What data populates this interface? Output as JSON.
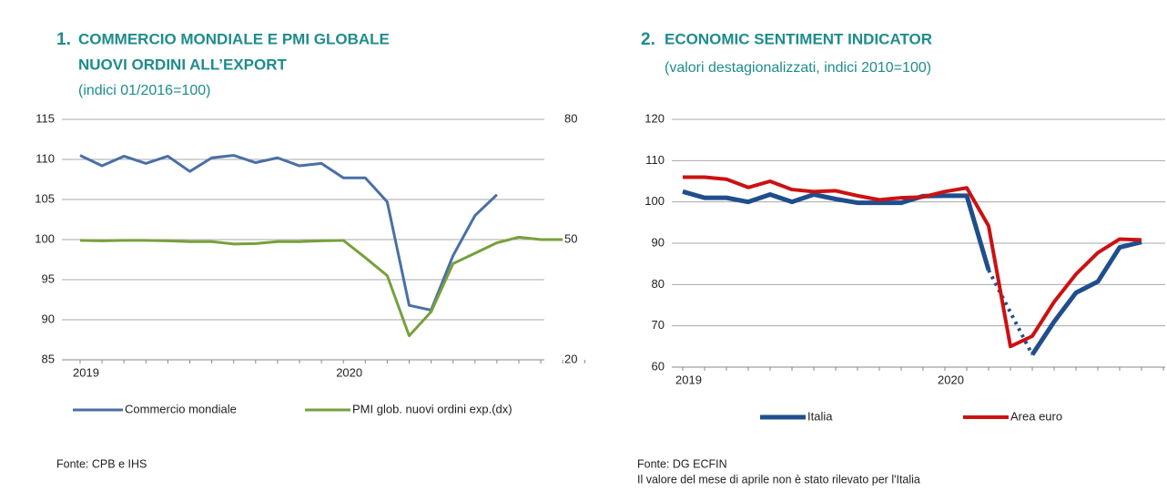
{
  "chart_data": [
    {
      "type": "line",
      "number": "1.",
      "title": "COMMERCIO MONDIALE E PMI GLOBALE",
      "title2": "NUOVI ORDINI ALL’EXPORT",
      "subtitle": "(indici 01/2016=100)",
      "categories": [
        "2019",
        null,
        null,
        null,
        null,
        null,
        null,
        null,
        null,
        null,
        null,
        null,
        "2020",
        null,
        null,
        null,
        null,
        null,
        null,
        null,
        null,
        null,
        null,
        null
      ],
      "series": [
        {
          "name": "Commercio mondiale",
          "color": "#4a6fa5",
          "values": [
            110.5,
            109.2,
            110.4,
            109.5,
            110.4,
            108.5,
            110.2,
            110.5,
            109.6,
            110.2,
            109.2,
            109.5,
            107.7,
            107.7,
            104.7,
            91.8,
            91.2,
            98,
            103,
            105.6,
            null,
            null,
            null,
            null
          ]
        },
        {
          "name": "PMI glob. nuovi ordini exp.(dx)",
          "color": "#77a03c",
          "axis": "y2",
          "values": [
            49.8,
            49.7,
            49.8,
            49.8,
            49.7,
            49.5,
            49.5,
            48.9,
            49.0,
            49.5,
            49.5,
            49.7,
            49.8,
            45.5,
            41,
            26,
            32,
            44,
            46.6,
            49.2,
            50.6,
            50,
            50,
            null
          ]
        }
      ],
      "ylim": [
        85,
        115
      ],
      "yticks": [
        85,
        90,
        95,
        100,
        105,
        110,
        115
      ],
      "y2lim": [
        20,
        80
      ],
      "y2ticks": [
        20,
        50,
        80
      ],
      "grid": true,
      "source": "Fonte: CPB e IHS"
    },
    {
      "type": "line",
      "number": "2.",
      "title": "ECONOMIC SENTIMENT INDICATOR",
      "subtitle": "(valori destagionalizzati, indici 2010=100)",
      "categories": [
        "2019",
        null,
        null,
        null,
        null,
        null,
        null,
        null,
        null,
        null,
        null,
        null,
        "2020",
        null,
        null,
        null,
        null,
        null,
        null,
        null,
        null,
        null,
        null
      ],
      "series": [
        {
          "name": "Italia",
          "color": "#1f4e8c",
          "values": [
            102.5,
            101,
            101,
            100,
            101.8,
            100,
            101.8,
            100.7,
            99.8,
            99.8,
            99.8,
            101.4,
            101.5,
            101.5,
            83.5,
            null,
            63,
            71,
            78,
            80.7,
            89,
            90.3,
            null
          ]
        },
        {
          "name": "Area euro",
          "color": "#cc1111",
          "values": [
            106,
            106,
            105.5,
            103.5,
            105,
            103,
            102.5,
            102.7,
            101.5,
            100.5,
            101,
            101.2,
            102.5,
            103.4,
            94.2,
            65,
            67.5,
            75.8,
            82.5,
            87.7,
            91,
            90.8,
            null
          ]
        }
      ],
      "ylim": [
        60,
        120
      ],
      "yticks": [
        60,
        70,
        80,
        90,
        100,
        110,
        120
      ],
      "grid": true,
      "source": "Fonte: DG ECFIN",
      "note": "Il valore del mese di aprile non è stato rilevato per l'Italia"
    }
  ]
}
